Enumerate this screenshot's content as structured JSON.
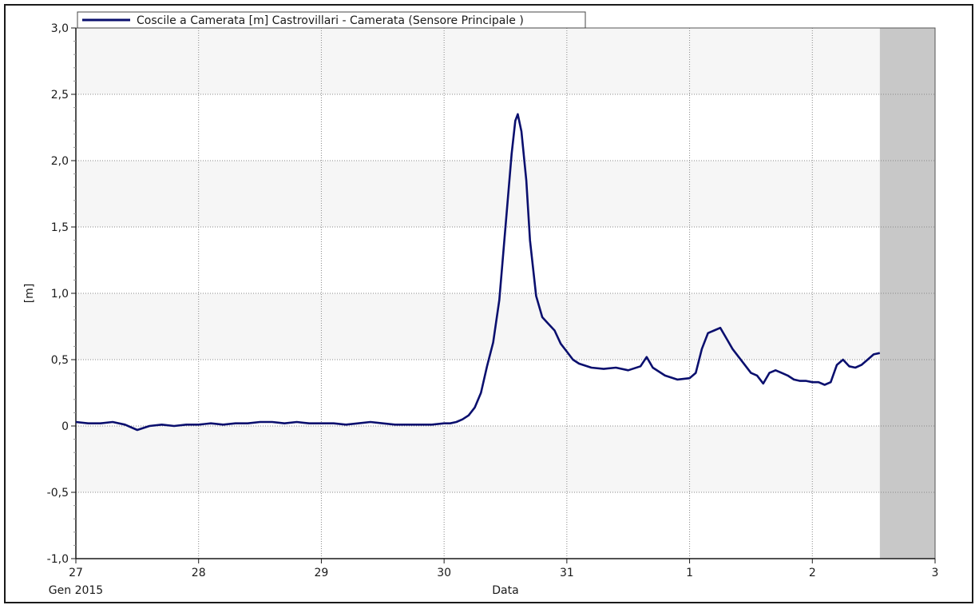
{
  "chart_data": {
    "type": "line",
    "xlabel": "Data",
    "ylabel": "[m]",
    "x_axis_sublabel": "Gen 2015",
    "x_ticks": [
      "27",
      "28",
      "29",
      "30",
      "31",
      "1",
      "2",
      "3"
    ],
    "xlim_days": [
      0,
      7
    ],
    "ylim": [
      -1.0,
      3.0
    ],
    "y_ticks": [
      {
        "value": -1.0,
        "label": "-1,0"
      },
      {
        "value": -0.5,
        "label": "-0,5"
      },
      {
        "value": 0.0,
        "label": "0"
      },
      {
        "value": 0.5,
        "label": "0,5"
      },
      {
        "value": 1.0,
        "label": "1,0"
      },
      {
        "value": 1.5,
        "label": "1,5"
      },
      {
        "value": 2.0,
        "label": "2,0"
      },
      {
        "value": 2.5,
        "label": "2,5"
      },
      {
        "value": 3.0,
        "label": "3,0"
      }
    ],
    "grid": true,
    "legend_position": "top-left",
    "no_data_region": {
      "from_day": 6.55,
      "to_day": 7,
      "color": "#c8c8c8"
    },
    "colors": {
      "line": "#0a0f6e",
      "band": "#f6f6f6",
      "grid": "#888888",
      "axis": "#1a1a1a"
    },
    "series": [
      {
        "name": "Coscile a Camerata [m] Castrovillari - Camerata  (Sensore Principale )",
        "points": [
          [
            0.0,
            0.03
          ],
          [
            0.1,
            0.02
          ],
          [
            0.2,
            0.02
          ],
          [
            0.3,
            0.03
          ],
          [
            0.4,
            0.01
          ],
          [
            0.5,
            -0.03
          ],
          [
            0.6,
            0.0
          ],
          [
            0.7,
            0.01
          ],
          [
            0.8,
            0.0
          ],
          [
            0.9,
            0.01
          ],
          [
            1.0,
            0.01
          ],
          [
            1.1,
            0.02
          ],
          [
            1.2,
            0.01
          ],
          [
            1.3,
            0.02
          ],
          [
            1.4,
            0.02
          ],
          [
            1.5,
            0.03
          ],
          [
            1.6,
            0.03
          ],
          [
            1.7,
            0.02
          ],
          [
            1.8,
            0.03
          ],
          [
            1.9,
            0.02
          ],
          [
            2.0,
            0.02
          ],
          [
            2.1,
            0.02
          ],
          [
            2.2,
            0.01
          ],
          [
            2.3,
            0.02
          ],
          [
            2.4,
            0.03
          ],
          [
            2.5,
            0.02
          ],
          [
            2.6,
            0.01
          ],
          [
            2.7,
            0.01
          ],
          [
            2.8,
            0.01
          ],
          [
            2.9,
            0.01
          ],
          [
            3.0,
            0.02
          ],
          [
            3.05,
            0.02
          ],
          [
            3.1,
            0.03
          ],
          [
            3.15,
            0.05
          ],
          [
            3.2,
            0.08
          ],
          [
            3.25,
            0.14
          ],
          [
            3.3,
            0.25
          ],
          [
            3.35,
            0.45
          ],
          [
            3.4,
            0.63
          ],
          [
            3.45,
            0.95
          ],
          [
            3.5,
            1.5
          ],
          [
            3.55,
            2.05
          ],
          [
            3.58,
            2.3
          ],
          [
            3.6,
            2.35
          ],
          [
            3.63,
            2.22
          ],
          [
            3.67,
            1.85
          ],
          [
            3.7,
            1.4
          ],
          [
            3.75,
            0.98
          ],
          [
            3.8,
            0.82
          ],
          [
            3.85,
            0.77
          ],
          [
            3.9,
            0.72
          ],
          [
            3.95,
            0.62
          ],
          [
            4.0,
            0.56
          ],
          [
            4.05,
            0.5
          ],
          [
            4.1,
            0.47
          ],
          [
            4.2,
            0.44
          ],
          [
            4.3,
            0.43
          ],
          [
            4.4,
            0.44
          ],
          [
            4.5,
            0.42
          ],
          [
            4.6,
            0.45
          ],
          [
            4.65,
            0.52
          ],
          [
            4.7,
            0.44
          ],
          [
            4.8,
            0.38
          ],
          [
            4.9,
            0.35
          ],
          [
            5.0,
            0.36
          ],
          [
            5.05,
            0.4
          ],
          [
            5.1,
            0.58
          ],
          [
            5.15,
            0.7
          ],
          [
            5.2,
            0.72
          ],
          [
            5.25,
            0.74
          ],
          [
            5.3,
            0.66
          ],
          [
            5.35,
            0.58
          ],
          [
            5.4,
            0.52
          ],
          [
            5.45,
            0.46
          ],
          [
            5.5,
            0.4
          ],
          [
            5.55,
            0.38
          ],
          [
            5.6,
            0.32
          ],
          [
            5.65,
            0.4
          ],
          [
            5.7,
            0.42
          ],
          [
            5.75,
            0.4
          ],
          [
            5.8,
            0.38
          ],
          [
            5.85,
            0.35
          ],
          [
            5.9,
            0.34
          ],
          [
            5.95,
            0.34
          ],
          [
            6.0,
            0.33
          ],
          [
            6.05,
            0.33
          ],
          [
            6.1,
            0.31
          ],
          [
            6.15,
            0.33
          ],
          [
            6.2,
            0.46
          ],
          [
            6.25,
            0.5
          ],
          [
            6.3,
            0.45
          ],
          [
            6.35,
            0.44
          ],
          [
            6.4,
            0.46
          ],
          [
            6.45,
            0.5
          ],
          [
            6.5,
            0.54
          ],
          [
            6.55,
            0.55
          ]
        ]
      }
    ]
  }
}
